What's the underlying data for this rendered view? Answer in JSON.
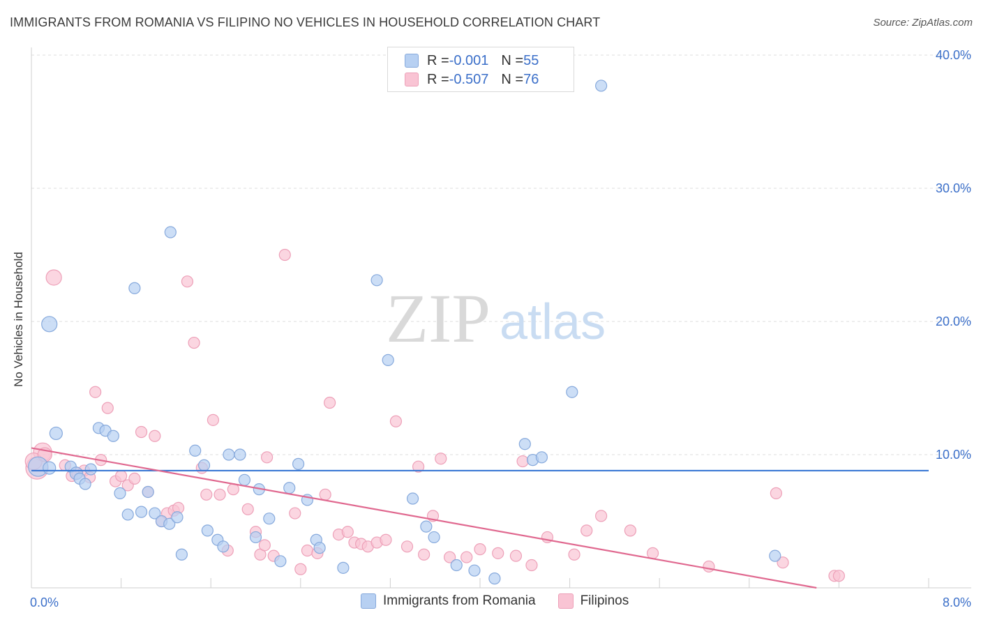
{
  "header": {
    "title": "IMMIGRANTS FROM ROMANIA VS FILIPINO NO VEHICLES IN HOUSEHOLD CORRELATION CHART",
    "source": "Source: ZipAtlas.com"
  },
  "watermark": {
    "part1": "ZIP",
    "part2": "atlas"
  },
  "legend_stats": [
    {
      "r_label": "R = ",
      "r_value": "-0.001",
      "n_label": "N = ",
      "n_value": "55"
    },
    {
      "r_label": "R = ",
      "r_value": "-0.507",
      "n_label": "N = ",
      "n_value": "76"
    }
  ],
  "colors": {
    "romania_fill": "#b7d0f2",
    "romania_stroke": "#86a9dc",
    "romania_line": "#3a78d4",
    "filipino_fill": "#f9c4d4",
    "filipino_stroke": "#eda0b8",
    "filipino_line": "#e0688f",
    "axis_label": "#3b6fc9",
    "grid": "#dddddd"
  },
  "chart_data": {
    "type": "scatter",
    "title": "IMMIGRANTS FROM ROMANIA VS FILIPINO NO VEHICLES IN HOUSEHOLD CORRELATION CHART",
    "ylabel": "No Vehicles in Household",
    "xlabel": "",
    "xlim": [
      0,
      8
    ],
    "ylim": [
      0,
      40
    ],
    "x_tick_labels": [
      {
        "value": 0,
        "label": "0.0%"
      },
      {
        "value": 8,
        "label": "8.0%"
      }
    ],
    "y_tick_labels": [
      {
        "value": 10,
        "label": "10.0%"
      },
      {
        "value": 20,
        "label": "20.0%"
      },
      {
        "value": 30,
        "label": "30.0%"
      },
      {
        "value": 40,
        "label": "40.0%"
      }
    ],
    "grid": true,
    "legend_position": "bottom",
    "series": [
      {
        "name": "Immigrants from Romania",
        "color": "#b7d0f2",
        "trend": {
          "x": [
            0,
            8
          ],
          "y": [
            8.8,
            8.8
          ]
        },
        "points": [
          {
            "x": 0.06,
            "y": 9.1,
            "s": 14
          },
          {
            "x": 0.16,
            "y": 9.0,
            "s": 9
          },
          {
            "x": 0.16,
            "y": 19.8,
            "s": 11
          },
          {
            "x": 0.22,
            "y": 11.6,
            "s": 9
          },
          {
            "x": 0.35,
            "y": 9.1,
            "s": 8
          },
          {
            "x": 0.4,
            "y": 8.6,
            "s": 9
          },
          {
            "x": 0.43,
            "y": 8.2,
            "s": 8
          },
          {
            "x": 0.48,
            "y": 7.8,
            "s": 8
          },
          {
            "x": 0.53,
            "y": 8.9,
            "s": 8
          },
          {
            "x": 0.6,
            "y": 12.0,
            "s": 8
          },
          {
            "x": 0.66,
            "y": 11.8,
            "s": 8
          },
          {
            "x": 0.73,
            "y": 11.4,
            "s": 8
          },
          {
            "x": 0.79,
            "y": 7.1,
            "s": 8
          },
          {
            "x": 0.86,
            "y": 5.5,
            "s": 8
          },
          {
            "x": 0.92,
            "y": 22.5,
            "s": 8
          },
          {
            "x": 0.98,
            "y": 5.7,
            "s": 8
          },
          {
            "x": 1.04,
            "y": 7.2,
            "s": 8
          },
          {
            "x": 1.1,
            "y": 5.6,
            "s": 8
          },
          {
            "x": 1.16,
            "y": 5.0,
            "s": 8
          },
          {
            "x": 1.23,
            "y": 4.8,
            "s": 8
          },
          {
            "x": 1.24,
            "y": 26.7,
            "s": 8
          },
          {
            "x": 1.3,
            "y": 5.3,
            "s": 8
          },
          {
            "x": 1.34,
            "y": 2.5,
            "s": 8
          },
          {
            "x": 1.46,
            "y": 10.3,
            "s": 8
          },
          {
            "x": 1.54,
            "y": 9.2,
            "s": 8
          },
          {
            "x": 1.57,
            "y": 4.3,
            "s": 8
          },
          {
            "x": 1.66,
            "y": 3.6,
            "s": 8
          },
          {
            "x": 1.71,
            "y": 3.1,
            "s": 8
          },
          {
            "x": 1.76,
            "y": 10.0,
            "s": 8
          },
          {
            "x": 1.86,
            "y": 10.0,
            "s": 8
          },
          {
            "x": 1.9,
            "y": 8.1,
            "s": 8
          },
          {
            "x": 2.0,
            "y": 3.8,
            "s": 8
          },
          {
            "x": 2.03,
            "y": 7.4,
            "s": 8
          },
          {
            "x": 2.12,
            "y": 5.2,
            "s": 8
          },
          {
            "x": 2.22,
            "y": 2.0,
            "s": 8
          },
          {
            "x": 2.3,
            "y": 7.5,
            "s": 8
          },
          {
            "x": 2.38,
            "y": 9.3,
            "s": 8
          },
          {
            "x": 2.46,
            "y": 6.6,
            "s": 8
          },
          {
            "x": 2.54,
            "y": 3.6,
            "s": 8
          },
          {
            "x": 2.57,
            "y": 3.0,
            "s": 8
          },
          {
            "x": 2.78,
            "y": 1.5,
            "s": 8
          },
          {
            "x": 3.08,
            "y": 23.1,
            "s": 8
          },
          {
            "x": 3.18,
            "y": 17.1,
            "s": 8
          },
          {
            "x": 3.4,
            "y": 6.7,
            "s": 8
          },
          {
            "x": 3.52,
            "y": 4.6,
            "s": 8
          },
          {
            "x": 3.59,
            "y": 3.8,
            "s": 8
          },
          {
            "x": 3.79,
            "y": 1.7,
            "s": 8
          },
          {
            "x": 3.95,
            "y": 1.3,
            "s": 8
          },
          {
            "x": 4.13,
            "y": 0.7,
            "s": 8
          },
          {
            "x": 4.4,
            "y": 10.8,
            "s": 8
          },
          {
            "x": 4.47,
            "y": 9.6,
            "s": 8
          },
          {
            "x": 4.55,
            "y": 9.8,
            "s": 8
          },
          {
            "x": 4.82,
            "y": 14.7,
            "s": 8
          },
          {
            "x": 5.08,
            "y": 37.7,
            "s": 8
          },
          {
            "x": 6.63,
            "y": 2.4,
            "s": 8
          }
        ]
      },
      {
        "name": "Filipinos",
        "color": "#f9c4d4",
        "trend": {
          "x": [
            0,
            7.0
          ],
          "y": [
            10.5,
            0.0
          ]
        },
        "points": [
          {
            "x": 0.05,
            "y": 9.0,
            "s": 16
          },
          {
            "x": 0.1,
            "y": 10.2,
            "s": 13
          },
          {
            "x": 0.2,
            "y": 23.3,
            "s": 11
          },
          {
            "x": 0.3,
            "y": 9.2,
            "s": 8
          },
          {
            "x": 0.36,
            "y": 8.4,
            "s": 8
          },
          {
            "x": 0.41,
            "y": 8.6,
            "s": 8
          },
          {
            "x": 0.47,
            "y": 8.8,
            "s": 8
          },
          {
            "x": 0.52,
            "y": 8.3,
            "s": 8
          },
          {
            "x": 0.57,
            "y": 14.7,
            "s": 8
          },
          {
            "x": 0.62,
            "y": 9.6,
            "s": 8
          },
          {
            "x": 0.68,
            "y": 13.5,
            "s": 8
          },
          {
            "x": 0.75,
            "y": 8.0,
            "s": 8
          },
          {
            "x": 0.8,
            "y": 8.4,
            "s": 8
          },
          {
            "x": 0.86,
            "y": 7.7,
            "s": 8
          },
          {
            "x": 0.92,
            "y": 8.2,
            "s": 8
          },
          {
            "x": 0.98,
            "y": 11.7,
            "s": 8
          },
          {
            "x": 1.04,
            "y": 7.2,
            "s": 8
          },
          {
            "x": 1.1,
            "y": 11.4,
            "s": 8
          },
          {
            "x": 1.16,
            "y": 5.0,
            "s": 8
          },
          {
            "x": 1.21,
            "y": 5.6,
            "s": 8
          },
          {
            "x": 1.27,
            "y": 5.8,
            "s": 8
          },
          {
            "x": 1.31,
            "y": 6.0,
            "s": 8
          },
          {
            "x": 1.39,
            "y": 23.0,
            "s": 8
          },
          {
            "x": 1.45,
            "y": 18.4,
            "s": 8
          },
          {
            "x": 1.52,
            "y": 9.0,
            "s": 8
          },
          {
            "x": 1.56,
            "y": 7.0,
            "s": 8
          },
          {
            "x": 1.62,
            "y": 12.6,
            "s": 8
          },
          {
            "x": 1.68,
            "y": 7.0,
            "s": 8
          },
          {
            "x": 1.75,
            "y": 2.8,
            "s": 8
          },
          {
            "x": 1.8,
            "y": 7.4,
            "s": 8
          },
          {
            "x": 1.93,
            "y": 5.9,
            "s": 8
          },
          {
            "x": 2.0,
            "y": 4.2,
            "s": 8
          },
          {
            "x": 2.04,
            "y": 2.5,
            "s": 8
          },
          {
            "x": 2.08,
            "y": 3.2,
            "s": 8
          },
          {
            "x": 2.1,
            "y": 9.8,
            "s": 8
          },
          {
            "x": 2.16,
            "y": 2.4,
            "s": 8
          },
          {
            "x": 2.26,
            "y": 25.0,
            "s": 8
          },
          {
            "x": 2.35,
            "y": 5.6,
            "s": 8
          },
          {
            "x": 2.4,
            "y": 1.4,
            "s": 8
          },
          {
            "x": 2.46,
            "y": 2.8,
            "s": 8
          },
          {
            "x": 2.55,
            "y": 2.6,
            "s": 8
          },
          {
            "x": 2.62,
            "y": 7.0,
            "s": 8
          },
          {
            "x": 2.66,
            "y": 13.9,
            "s": 8
          },
          {
            "x": 2.74,
            "y": 4.0,
            "s": 8
          },
          {
            "x": 2.82,
            "y": 4.2,
            "s": 8
          },
          {
            "x": 2.88,
            "y": 3.4,
            "s": 8
          },
          {
            "x": 2.94,
            "y": 3.3,
            "s": 8
          },
          {
            "x": 3.0,
            "y": 3.1,
            "s": 8
          },
          {
            "x": 3.08,
            "y": 3.4,
            "s": 8
          },
          {
            "x": 3.16,
            "y": 3.6,
            "s": 8
          },
          {
            "x": 3.25,
            "y": 12.5,
            "s": 8
          },
          {
            "x": 3.35,
            "y": 3.1,
            "s": 8
          },
          {
            "x": 3.45,
            "y": 9.1,
            "s": 8
          },
          {
            "x": 3.5,
            "y": 2.5,
            "s": 8
          },
          {
            "x": 3.58,
            "y": 5.4,
            "s": 8
          },
          {
            "x": 3.65,
            "y": 9.7,
            "s": 8
          },
          {
            "x": 3.73,
            "y": 2.3,
            "s": 8
          },
          {
            "x": 3.88,
            "y": 2.3,
            "s": 8
          },
          {
            "x": 4.0,
            "y": 2.9,
            "s": 8
          },
          {
            "x": 4.16,
            "y": 2.6,
            "s": 8
          },
          {
            "x": 4.32,
            "y": 2.4,
            "s": 8
          },
          {
            "x": 4.38,
            "y": 9.5,
            "s": 8
          },
          {
            "x": 4.46,
            "y": 1.7,
            "s": 8
          },
          {
            "x": 4.6,
            "y": 3.8,
            "s": 8
          },
          {
            "x": 4.84,
            "y": 2.5,
            "s": 8
          },
          {
            "x": 4.95,
            "y": 4.3,
            "s": 8
          },
          {
            "x": 5.08,
            "y": 5.4,
            "s": 8
          },
          {
            "x": 5.34,
            "y": 4.3,
            "s": 8
          },
          {
            "x": 5.54,
            "y": 2.6,
            "s": 8
          },
          {
            "x": 6.04,
            "y": 1.6,
            "s": 8
          },
          {
            "x": 6.64,
            "y": 7.1,
            "s": 8
          },
          {
            "x": 6.7,
            "y": 1.9,
            "s": 8
          },
          {
            "x": 7.16,
            "y": 0.9,
            "s": 8
          },
          {
            "x": 7.2,
            "y": 0.9,
            "s": 8
          },
          {
            "x": 0.02,
            "y": 9.5,
            "s": 12
          },
          {
            "x": 0.12,
            "y": 10.0,
            "s": 10
          }
        ]
      }
    ]
  },
  "bottom_legend": [
    {
      "label": "Immigrants from Romania"
    },
    {
      "label": "Filipinos"
    }
  ]
}
